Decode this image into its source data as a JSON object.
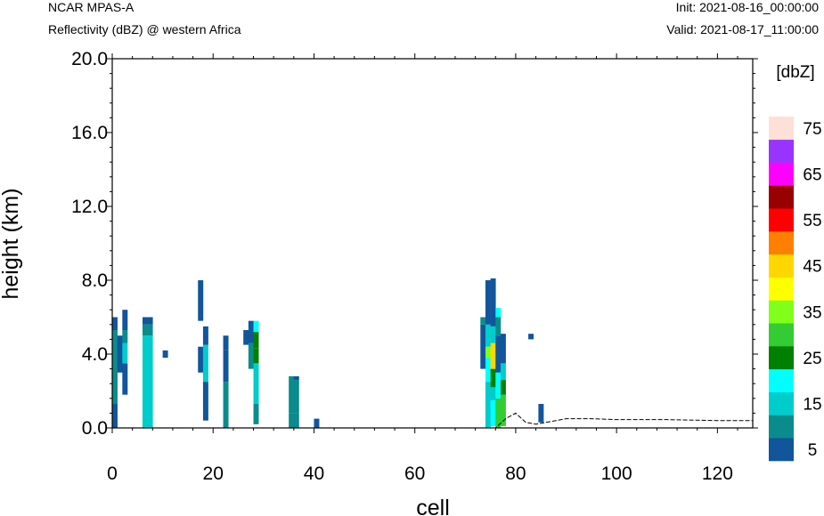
{
  "header": {
    "model": "NCAR MPAS-A",
    "field": "Reflectivity (dBZ) @ western Africa",
    "init": "Init: 2021-08-16_00:00:00",
    "valid": "Valid: 2021-08-17_11:00:00"
  },
  "chart_data": {
    "type": "heatmap",
    "xlabel": "cell",
    "ylabel": "height (km)",
    "xlim": [
      0,
      127
    ],
    "ylim": [
      0,
      20
    ],
    "x_ticks": [
      0,
      20,
      40,
      60,
      80,
      100,
      120
    ],
    "y_ticks": [
      0,
      4,
      8,
      12,
      16,
      20
    ],
    "y_tick_labels": [
      "0.0",
      "4.0",
      "8.0",
      "12.0",
      "16.0",
      "20.0"
    ],
    "colorbar": {
      "title": "[dbZ]",
      "levels": [
        5,
        10,
        15,
        20,
        25,
        30,
        35,
        40,
        45,
        50,
        55,
        60,
        65,
        70,
        75
      ],
      "labels": [
        "5",
        "15",
        "25",
        "35",
        "45",
        "55",
        "65",
        "75"
      ],
      "colors": [
        "#11559a",
        "#0a8c8c",
        "#00cccc",
        "#00ffff",
        "#008000",
        "#33cc33",
        "#80ff1a",
        "#ffff00",
        "#ffd700",
        "#ff8000",
        "#ff0000",
        "#990000",
        "#ff00ff",
        "#9933ff",
        "#ffe0d6"
      ]
    },
    "columns": [
      {
        "x": 0.5,
        "segments": [
          [
            0,
            1.3,
            5
          ],
          [
            1.3,
            5.3,
            10
          ],
          [
            5.3,
            6.0,
            5
          ]
        ]
      },
      {
        "x": 1.5,
        "segments": [
          [
            3.0,
            5.0,
            5
          ]
        ]
      },
      {
        "x": 2.5,
        "segments": [
          [
            1.8,
            3.5,
            5
          ],
          [
            3.5,
            4.6,
            15
          ],
          [
            4.6,
            5.3,
            10
          ],
          [
            5.3,
            6.4,
            5
          ]
        ]
      },
      {
        "x": 6.5,
        "segments": [
          [
            0,
            5.0,
            15
          ],
          [
            5.0,
            5.6,
            10
          ],
          [
            5.6,
            6.0,
            5
          ]
        ]
      },
      {
        "x": 7.5,
        "segments": [
          [
            0,
            5.0,
            15
          ],
          [
            5.0,
            5.6,
            10
          ],
          [
            5.6,
            6.0,
            5
          ]
        ]
      },
      {
        "x": 10.5,
        "segments": [
          [
            3.8,
            4.2,
            5
          ]
        ]
      },
      {
        "x": 17.5,
        "segments": [
          [
            3.0,
            4.4,
            5
          ],
          [
            5.8,
            8.0,
            5
          ]
        ]
      },
      {
        "x": 18.5,
        "segments": [
          [
            0.4,
            2.5,
            5
          ],
          [
            2.5,
            4.5,
            15
          ],
          [
            4.5,
            5.5,
            5
          ]
        ]
      },
      {
        "x": 22.5,
        "segments": [
          [
            0,
            2.5,
            10
          ],
          [
            2.5,
            4.2,
            5
          ],
          [
            4.2,
            5.0,
            5
          ]
        ]
      },
      {
        "x": 26.5,
        "segments": [
          [
            4.5,
            5.3,
            5
          ]
        ]
      },
      {
        "x": 27.5,
        "segments": [
          [
            3.2,
            4.6,
            10
          ],
          [
            4.6,
            5.3,
            5
          ],
          [
            5.3,
            5.8,
            5
          ]
        ]
      },
      {
        "x": 28.5,
        "segments": [
          [
            0.2,
            1.3,
            10
          ],
          [
            1.3,
            3.5,
            15
          ],
          [
            3.5,
            4.3,
            25
          ],
          [
            4.3,
            5.2,
            25
          ],
          [
            5.2,
            5.8,
            20
          ]
        ]
      },
      {
        "x": 35.5,
        "segments": [
          [
            0,
            0.8,
            10
          ],
          [
            0.8,
            2.8,
            10
          ]
        ]
      },
      {
        "x": 36.5,
        "segments": [
          [
            0,
            0.8,
            10
          ],
          [
            0.8,
            2.6,
            10
          ],
          [
            2.6,
            2.8,
            5
          ]
        ]
      },
      {
        "x": 40.5,
        "segments": [
          [
            0,
            0.5,
            5
          ]
        ]
      },
      {
        "x": 73.5,
        "segments": [
          [
            3.2,
            5.6,
            5
          ],
          [
            5.6,
            6.0,
            10
          ]
        ]
      },
      {
        "x": 74.5,
        "segments": [
          [
            0,
            2.5,
            15
          ],
          [
            2.5,
            3.8,
            20
          ],
          [
            3.8,
            4.4,
            35
          ],
          [
            4.4,
            5.6,
            15
          ],
          [
            5.6,
            8.0,
            5
          ]
        ]
      },
      {
        "x": 75.5,
        "segments": [
          [
            0.1,
            1.5,
            20
          ],
          [
            1.5,
            2.2,
            15
          ],
          [
            2.2,
            3.2,
            25
          ],
          [
            3.2,
            4.6,
            45
          ],
          [
            4.6,
            5.5,
            15
          ],
          [
            5.5,
            8.1,
            5
          ]
        ]
      },
      {
        "x": 76.5,
        "segments": [
          [
            0,
            1.6,
            30
          ],
          [
            1.6,
            3.0,
            20
          ],
          [
            3.0,
            5.0,
            5
          ],
          [
            5.0,
            6.0,
            10
          ],
          [
            6.0,
            6.5,
            20
          ]
        ]
      },
      {
        "x": 77.5,
        "segments": [
          [
            0.1,
            1.8,
            30
          ],
          [
            1.8,
            2.6,
            25
          ],
          [
            2.6,
            3.5,
            15
          ],
          [
            3.5,
            5.1,
            5
          ]
        ]
      },
      {
        "x": 83.0,
        "segments": [
          [
            4.8,
            5.1,
            5
          ]
        ]
      },
      {
        "x": 85.0,
        "segments": [
          [
            0.3,
            1.3,
            5
          ]
        ]
      }
    ],
    "terrain": [
      [
        0,
        0
      ],
      [
        76,
        0
      ],
      [
        78,
        0.5
      ],
      [
        80,
        0.8
      ],
      [
        82,
        0.3
      ],
      [
        84,
        0.2
      ],
      [
        86,
        0.3
      ],
      [
        88,
        0.4
      ],
      [
        90,
        0.5
      ],
      [
        95,
        0.5
      ],
      [
        100,
        0.45
      ],
      [
        110,
        0.45
      ],
      [
        120,
        0.4
      ],
      [
        127,
        0.4
      ]
    ]
  }
}
